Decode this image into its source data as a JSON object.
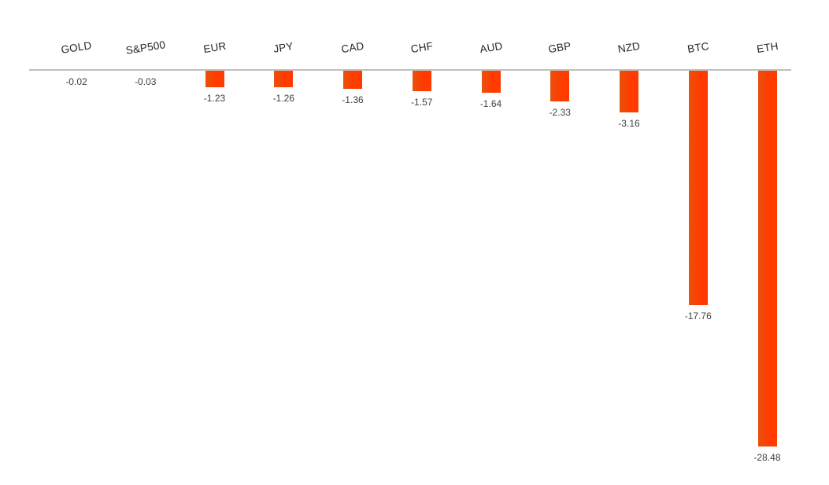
{
  "chart_data": {
    "type": "bar",
    "title": "",
    "xlabel": "",
    "ylabel": "",
    "categories": [
      "GOLD",
      "S&P500",
      "EUR",
      "JPY",
      "CAD",
      "CHF",
      "AUD",
      "GBP",
      "NZD",
      "BTC",
      "ETH"
    ],
    "values": [
      -0.02,
      -0.03,
      -1.23,
      -1.26,
      -1.36,
      -1.57,
      -1.64,
      -2.33,
      -3.16,
      -17.76,
      -28.48
    ],
    "data_labels": [
      "-0.02",
      "-0.03",
      "-1.23",
      "-1.26",
      "-1.36",
      "-1.57",
      "-1.64",
      "-2.33",
      "-3.16",
      "-17.76",
      "-28.48"
    ],
    "ylim": [
      -31,
      0
    ],
    "grid": false,
    "legend": false,
    "category_label_rotation_deg": -9,
    "colors": {
      "bar_main": "#FF3B00",
      "bar_edge": "#E8520C",
      "axis_line": "#BFBFBF",
      "category_text": "#262626",
      "value_text": "#404040",
      "background": "#FFFFFF"
    }
  }
}
